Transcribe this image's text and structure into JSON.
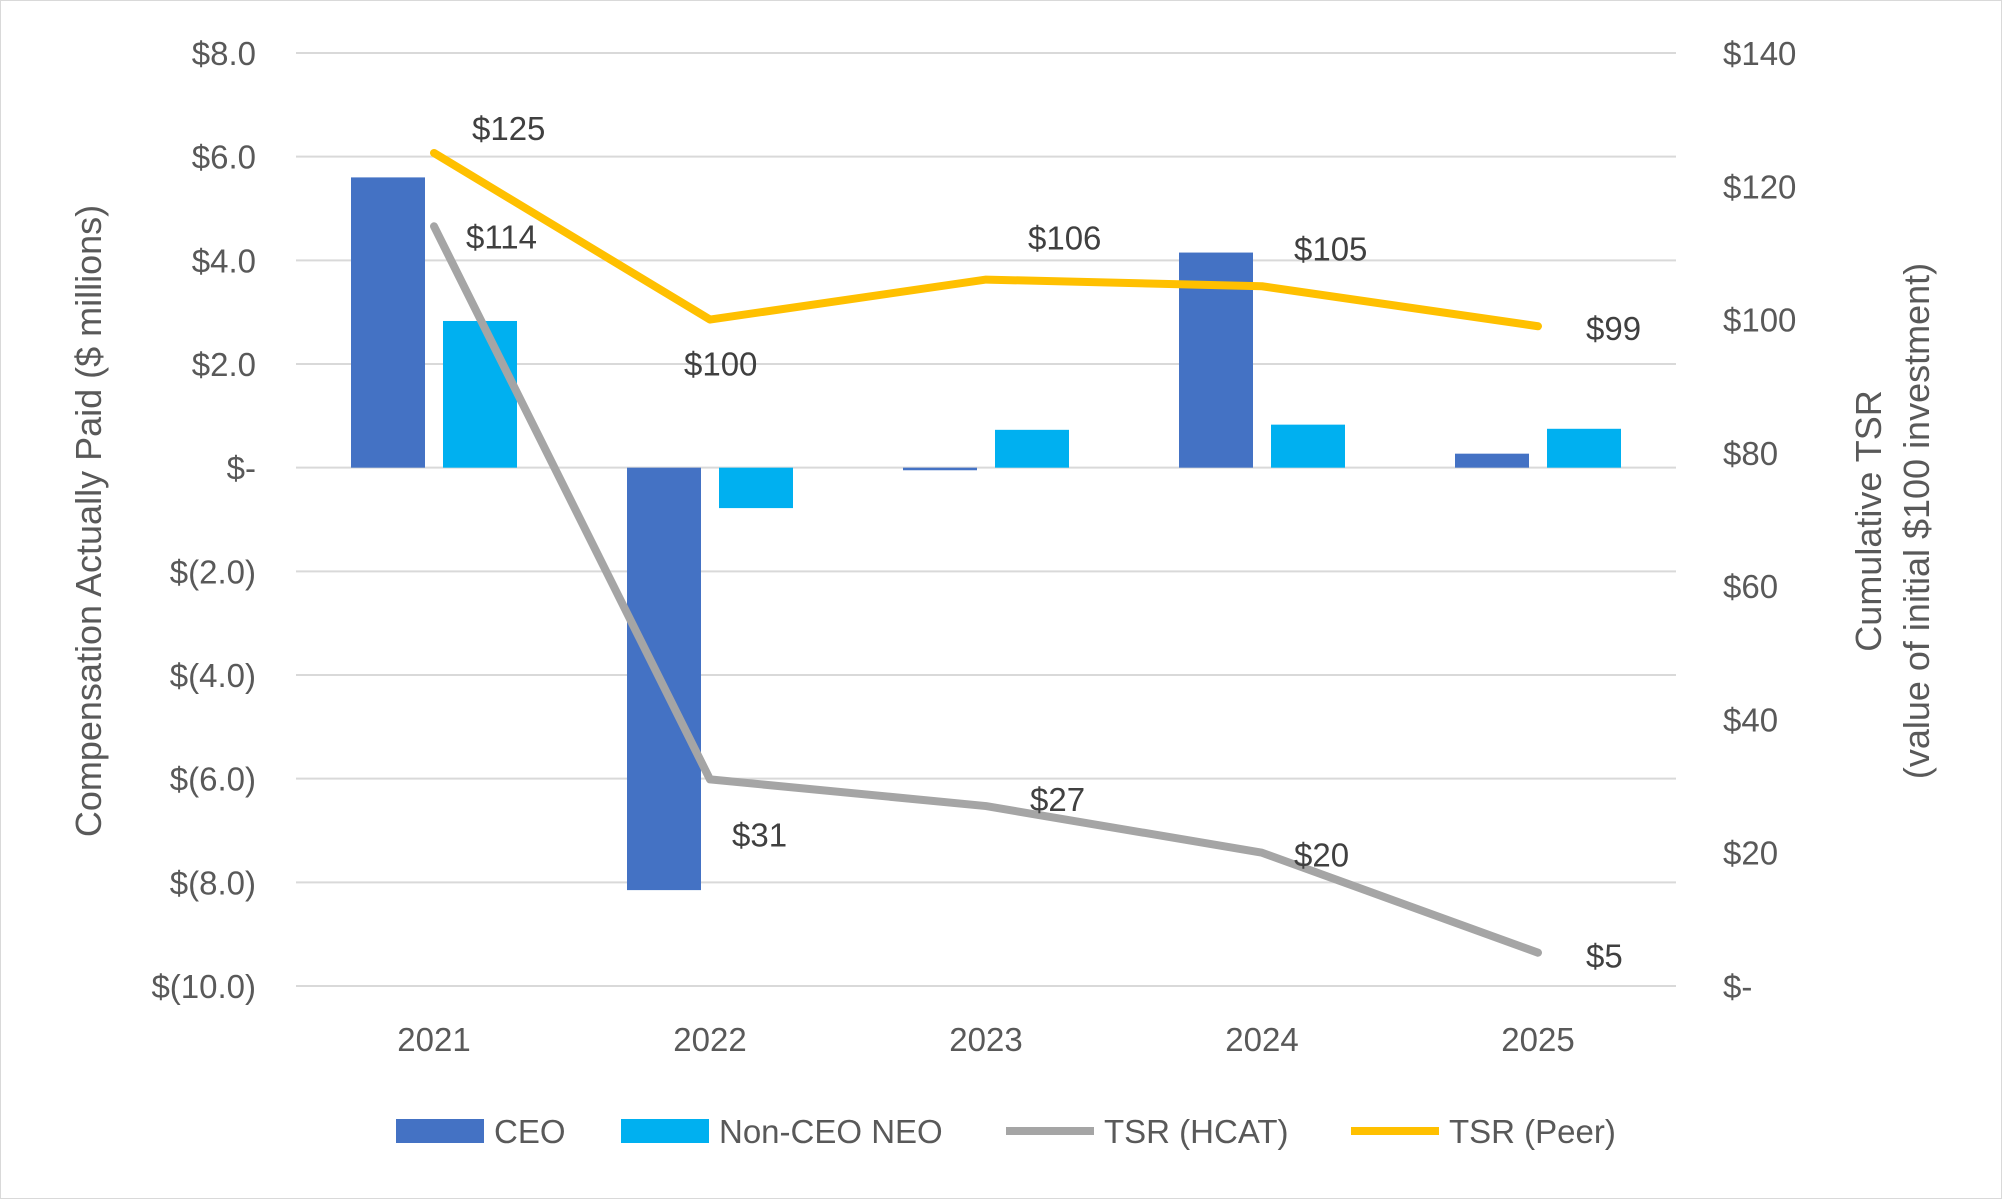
{
  "chart_data": {
    "type": "bar",
    "categories": [
      "2021",
      "2022",
      "2023",
      "2024",
      "2025"
    ],
    "left_axis": {
      "label": "Compensation Actually Paid ($ millions)",
      "ylim": [
        -10,
        8
      ],
      "ticks": [
        8,
        6,
        4,
        2,
        0,
        -2,
        -4,
        -6,
        -8,
        -10
      ],
      "tick_labels": [
        "$8.0",
        "$6.0",
        "$4.0",
        "$2.0",
        "$-",
        "$(2.0)",
        "$(4.0)",
        "$(6.0)",
        "$(8.0)",
        "$(10.0)"
      ]
    },
    "right_axis": {
      "label_line1": "Cumulative TSR",
      "label_line2": "(value of initial $100 investment)",
      "ylim": [
        0,
        140
      ],
      "ticks": [
        140,
        120,
        100,
        80,
        60,
        40,
        20,
        0
      ],
      "tick_labels": [
        "$140",
        "$120",
        "$100",
        "$80",
        "$60",
        "$40",
        "$20",
        "$-"
      ]
    },
    "series": [
      {
        "name": "CEO",
        "kind": "bar",
        "axis": "left",
        "color": "#4472c4",
        "values": [
          5.6,
          -8.15,
          -0.05,
          4.15,
          0.27
        ]
      },
      {
        "name": "Non-CEO NEO",
        "kind": "bar",
        "axis": "left",
        "color": "#00b0f0",
        "values": [
          2.83,
          -0.78,
          0.73,
          0.83,
          0.75
        ]
      },
      {
        "name": "TSR (HCAT)",
        "kind": "line",
        "axis": "right",
        "color": "#a5a5a5",
        "values": [
          114,
          31,
          27,
          20,
          5
        ],
        "data_labels": [
          "$114",
          "$31",
          "$27",
          "$20",
          "$5"
        ]
      },
      {
        "name": "TSR (Peer)",
        "kind": "line",
        "axis": "right",
        "color": "#ffc000",
        "values": [
          125,
          100,
          106,
          105,
          99
        ],
        "data_labels": [
          "$125",
          "$100",
          "$106",
          "$105",
          "$99"
        ]
      }
    ],
    "grid": true,
    "legend": "bottom"
  }
}
